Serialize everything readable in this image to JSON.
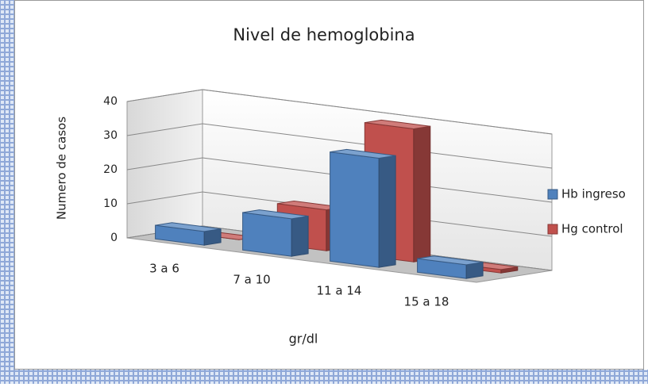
{
  "chart_data": {
    "type": "bar3d",
    "title": "Nivel de hemoglobina",
    "y_label": "Numero de casos",
    "x_label": "gr/dl",
    "categories": [
      "3 a 6",
      "7 a 10",
      "11 a 14",
      "15 a 18"
    ],
    "series": [
      {
        "name": "Hb ingreso",
        "color": "#4f81bd",
        "values": [
          4,
          11,
          32,
          4
        ]
      },
      {
        "name": "Hg control",
        "color": "#c0504d",
        "values": [
          0,
          12,
          39,
          1
        ]
      }
    ],
    "ylim": [
      0,
      40
    ],
    "yticks": [
      0,
      10,
      20,
      30,
      40
    ],
    "grid": true,
    "legend": "right"
  }
}
